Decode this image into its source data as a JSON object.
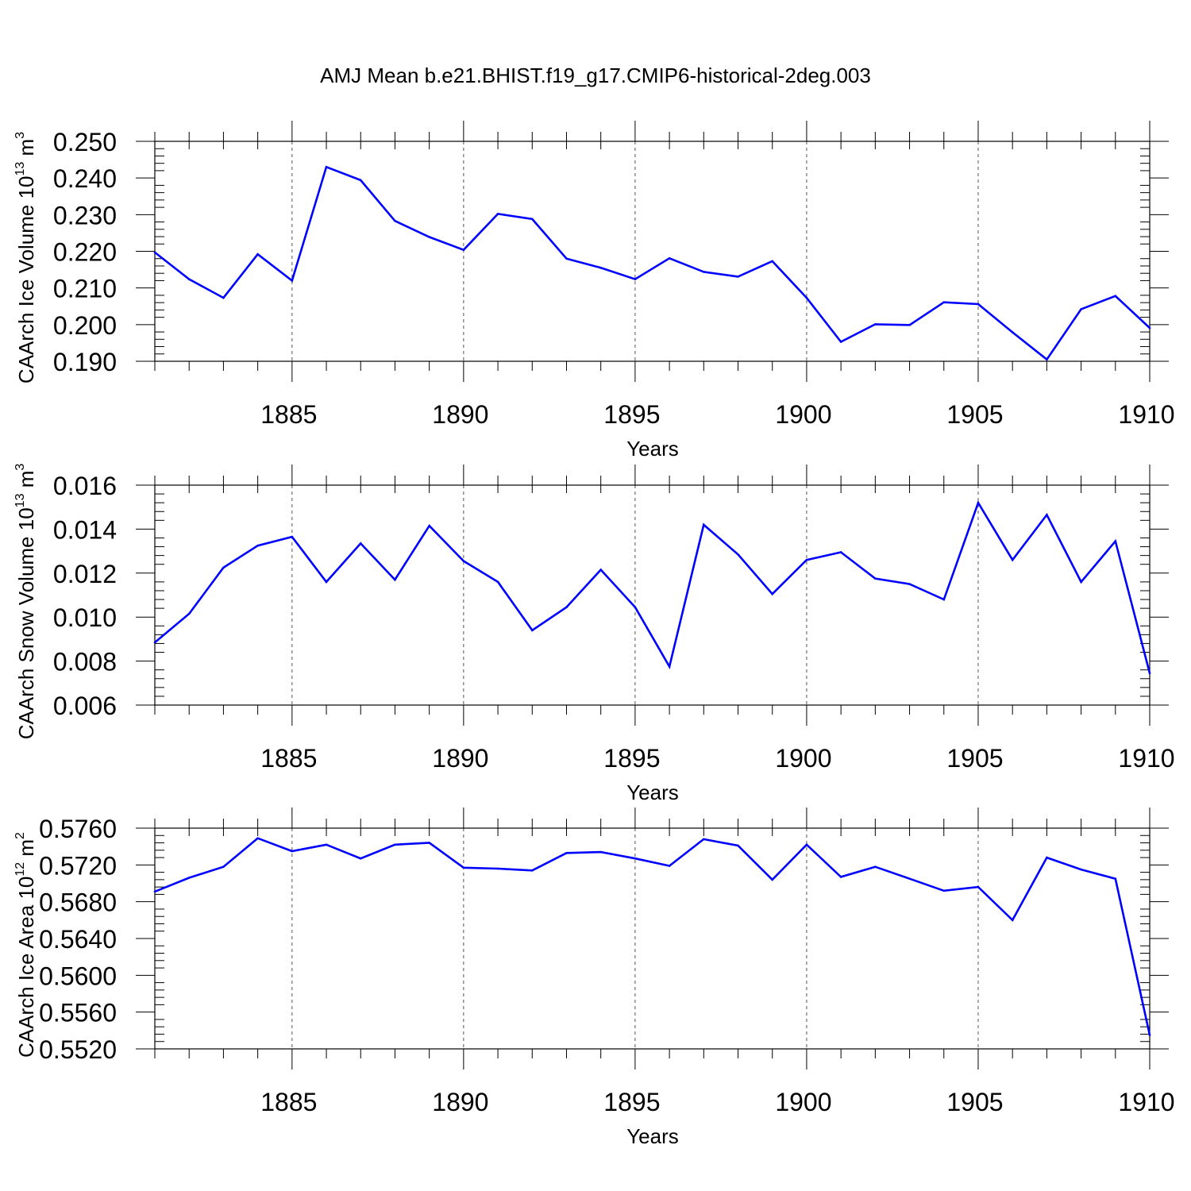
{
  "title": "AMJ Mean b.e21.BHIST.f19_g17.CMIP6-historical-2deg.003",
  "line_color": "#0000ff",
  "chart_data": [
    {
      "type": "line",
      "name": "ice-volume",
      "ylabel_main": "CAArch Ice Volume 10",
      "ylabel_exp": "13",
      "ylabel_unit": " m",
      "ylabel_unit_exp": "3",
      "xlabel": "Years",
      "xlim": [
        1881,
        1910
      ],
      "ylim": [
        0.19,
        0.25
      ],
      "xticks": [
        1885,
        1890,
        1895,
        1900,
        1905,
        1910
      ],
      "xtick_labels": [
        "1885",
        "1890",
        "1895",
        "1900",
        "1905",
        "1910"
      ],
      "yticks": [
        0.19,
        0.2,
        0.21,
        0.22,
        0.23,
        0.24,
        0.25
      ],
      "ytick_labels": [
        "0.190",
        "0.200",
        "0.210",
        "0.220",
        "0.230",
        "0.240",
        "0.250"
      ],
      "x": [
        1881,
        1882,
        1883,
        1884,
        1885,
        1886,
        1887,
        1888,
        1889,
        1890,
        1891,
        1892,
        1893,
        1894,
        1895,
        1896,
        1897,
        1898,
        1899,
        1900,
        1901,
        1902,
        1903,
        1904,
        1905,
        1906,
        1907,
        1908,
        1909,
        1910
      ],
      "values": [
        0.2197,
        0.2124,
        0.2073,
        0.2192,
        0.212,
        0.243,
        0.2394,
        0.2283,
        0.2239,
        0.2204,
        0.2302,
        0.2288,
        0.218,
        0.2155,
        0.2124,
        0.2181,
        0.2144,
        0.2131,
        0.2173,
        0.2073,
        0.1953,
        0.2001,
        0.1999,
        0.2061,
        0.2056,
        0.1979,
        0.1905,
        0.2042,
        0.2078,
        0.1991
      ]
    },
    {
      "type": "line",
      "name": "snow-volume",
      "ylabel_main": "CAArch Snow Volume 10",
      "ylabel_exp": "13",
      "ylabel_unit": " m",
      "ylabel_unit_exp": "3",
      "xlabel": "Years",
      "xlim": [
        1881,
        1910
      ],
      "ylim": [
        0.006,
        0.016
      ],
      "xticks": [
        1885,
        1890,
        1895,
        1900,
        1905,
        1910
      ],
      "xtick_labels": [
        "1885",
        "1890",
        "1895",
        "1900",
        "1905",
        "1910"
      ],
      "yticks": [
        0.006,
        0.008,
        0.01,
        0.012,
        0.014,
        0.016
      ],
      "ytick_labels": [
        "0.006",
        "0.008",
        "0.010",
        "0.012",
        "0.014",
        "0.016"
      ],
      "x": [
        1881,
        1882,
        1883,
        1884,
        1885,
        1886,
        1887,
        1888,
        1889,
        1890,
        1891,
        1892,
        1893,
        1894,
        1895,
        1896,
        1897,
        1898,
        1899,
        1900,
        1901,
        1902,
        1903,
        1904,
        1905,
        1906,
        1907,
        1908,
        1909,
        1910
      ],
      "values": [
        0.00885,
        0.01015,
        0.01225,
        0.01325,
        0.01365,
        0.0116,
        0.01335,
        0.0117,
        0.01415,
        0.01255,
        0.0116,
        0.0094,
        0.01045,
        0.01215,
        0.01045,
        0.00775,
        0.0142,
        0.01285,
        0.01105,
        0.0126,
        0.01295,
        0.01175,
        0.0115,
        0.0108,
        0.0152,
        0.0126,
        0.01465,
        0.0116,
        0.01345,
        0.00745
      ]
    },
    {
      "type": "line",
      "name": "ice-area",
      "ylabel_main": "CAArch Ice Area 10",
      "ylabel_exp": "12",
      "ylabel_unit": " m",
      "ylabel_unit_exp": "2",
      "xlabel": "Years",
      "xlim": [
        1881,
        1910
      ],
      "ylim": [
        0.552,
        0.576
      ],
      "xticks": [
        1885,
        1890,
        1895,
        1900,
        1905,
        1910
      ],
      "xtick_labels": [
        "1885",
        "1890",
        "1895",
        "1900",
        "1905",
        "1910"
      ],
      "yticks": [
        0.552,
        0.556,
        0.56,
        0.564,
        0.568,
        0.572,
        0.576
      ],
      "ytick_labels": [
        "0.5520",
        "0.5560",
        "0.5600",
        "0.5640",
        "0.5680",
        "0.5720",
        "0.5760"
      ],
      "x": [
        1881,
        1882,
        1883,
        1884,
        1885,
        1886,
        1887,
        1888,
        1889,
        1890,
        1891,
        1892,
        1893,
        1894,
        1895,
        1896,
        1897,
        1898,
        1899,
        1900,
        1901,
        1902,
        1903,
        1904,
        1905,
        1906,
        1907,
        1908,
        1909,
        1910
      ],
      "values": [
        0.5691,
        0.5706,
        0.5718,
        0.5749,
        0.5735,
        0.5742,
        0.5727,
        0.5742,
        0.5744,
        0.5717,
        0.5716,
        0.5714,
        0.5733,
        0.5734,
        0.5727,
        0.5719,
        0.5748,
        0.5741,
        0.5704,
        0.5742,
        0.5707,
        0.5718,
        0.5705,
        0.5692,
        0.5696,
        0.566,
        0.5728,
        0.5715,
        0.5705,
        0.5535
      ]
    }
  ]
}
